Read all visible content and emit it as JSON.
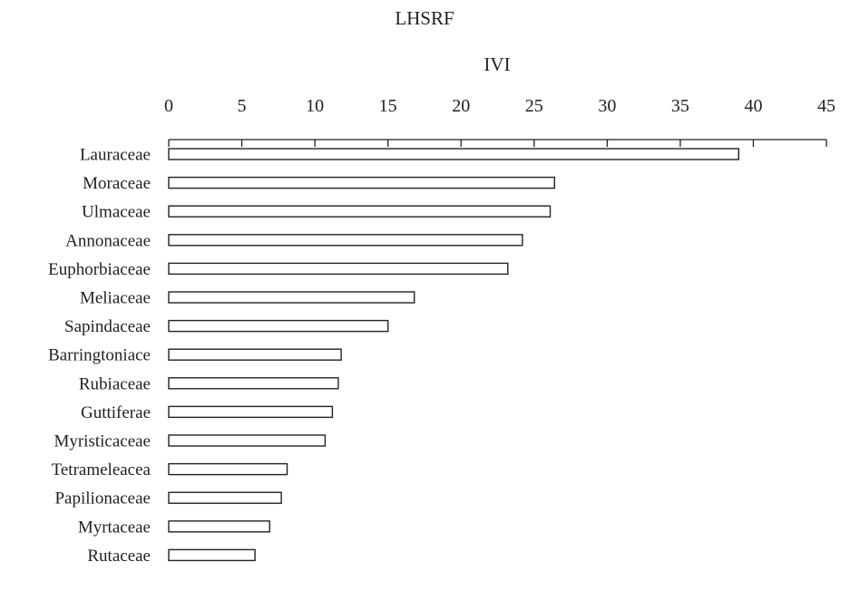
{
  "chart_data": {
    "type": "bar",
    "orientation": "horizontal",
    "title": "LHSRF",
    "xlabel": "IVI",
    "xlim": [
      0,
      45
    ],
    "xticks": [
      0,
      5,
      10,
      15,
      20,
      25,
      30,
      35,
      40,
      45
    ],
    "grid": false,
    "categories": [
      "Lauraceae",
      "Moraceae",
      "Ulmaceae",
      "Annonaceae",
      "Euphorbiaceae",
      "Meliaceae",
      "Sapindaceae",
      "Barringtoniace",
      "Rubiaceae",
      "Guttiferae",
      "Myristicaceae",
      "Tetrameleacea",
      "Papilionaceae",
      "Myrtaceae",
      "Rutaceae"
    ],
    "values": [
      39,
      26.4,
      26.1,
      24.2,
      23.2,
      16.8,
      15,
      11.8,
      11.6,
      11.2,
      10.7,
      8.1,
      7.7,
      6.9,
      5.9
    ],
    "colors": {
      "bar_fill": "#ffffff",
      "bar_stroke": "#222222",
      "axis": "#222222",
      "text": "#222222"
    }
  }
}
